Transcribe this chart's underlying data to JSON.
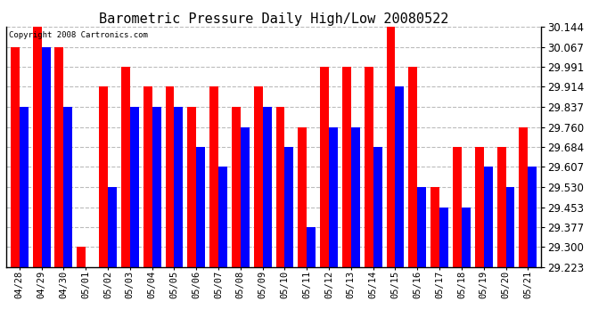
{
  "title": "Barometric Pressure Daily High/Low 20080522",
  "copyright": "Copyright 2008 Cartronics.com",
  "dates": [
    "04/28",
    "04/29",
    "04/30",
    "05/01",
    "05/02",
    "05/03",
    "05/04",
    "05/05",
    "05/06",
    "05/07",
    "05/08",
    "05/09",
    "05/10",
    "05/11",
    "05/12",
    "05/13",
    "05/14",
    "05/15",
    "05/16",
    "05/17",
    "05/18",
    "05/19",
    "05/20",
    "05/21"
  ],
  "highs": [
    30.067,
    30.144,
    30.067,
    29.3,
    29.914,
    29.991,
    29.914,
    29.914,
    29.837,
    29.914,
    29.837,
    29.914,
    29.837,
    29.76,
    29.991,
    29.991,
    29.991,
    30.144,
    29.991,
    29.53,
    29.684,
    29.684,
    29.684,
    29.76
  ],
  "lows": [
    29.837,
    30.067,
    29.837,
    29.223,
    29.53,
    29.837,
    29.837,
    29.837,
    29.684,
    29.607,
    29.76,
    29.837,
    29.684,
    29.377,
    29.76,
    29.76,
    29.684,
    29.914,
    29.53,
    29.453,
    29.453,
    29.607,
    29.53,
    29.607
  ],
  "ymin": 29.223,
  "ymax": 30.144,
  "yticks": [
    29.223,
    29.3,
    29.377,
    29.453,
    29.53,
    29.607,
    29.684,
    29.76,
    29.837,
    29.914,
    29.991,
    30.067,
    30.144
  ],
  "high_color": "#ff0000",
  "low_color": "#0000ff",
  "bg_color": "#ffffff",
  "plot_bg_color": "#ffffff",
  "grid_color": "#bbbbbb",
  "title_fontsize": 11,
  "bar_width": 0.4,
  "figwidth": 6.9,
  "figheight": 3.75,
  "dpi": 100
}
